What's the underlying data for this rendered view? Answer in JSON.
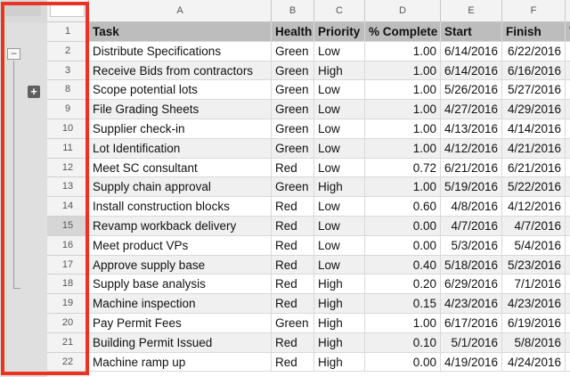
{
  "columns": [
    {
      "letter": "A",
      "header": "Task"
    },
    {
      "letter": "B",
      "header": "Health"
    },
    {
      "letter": "C",
      "header": "Priority"
    },
    {
      "letter": "D",
      "header": "% Complete"
    },
    {
      "letter": "E",
      "header": "Start"
    },
    {
      "letter": "F",
      "header": "Finish"
    },
    {
      "letter": "",
      "header": "V"
    }
  ],
  "group_controls": {
    "collapse_symbol": "−",
    "expand_symbol": "+"
  },
  "rows": [
    {
      "num": "2",
      "task": "Distribute Specifications",
      "health": "Green",
      "priority": "Low",
      "complete": "1.00",
      "start": "6/14/2016",
      "finish": "6/22/2016"
    },
    {
      "num": "3",
      "task": "Receive Bids from contractors",
      "health": "Green",
      "priority": "High",
      "complete": "1.00",
      "start": "6/14/2016",
      "finish": "6/16/2016"
    },
    {
      "num": "8",
      "task": "Scope potential lots",
      "health": "Green",
      "priority": "Low",
      "complete": "1.00",
      "start": "5/26/2016",
      "finish": "5/27/2016"
    },
    {
      "num": "9",
      "task": "File Grading Sheets",
      "health": "Green",
      "priority": "Low",
      "complete": "1.00",
      "start": "4/27/2016",
      "finish": "4/29/2016"
    },
    {
      "num": "10",
      "task": "Supplier check-in",
      "health": "Green",
      "priority": "Low",
      "complete": "1.00",
      "start": "4/13/2016",
      "finish": "4/14/2016"
    },
    {
      "num": "11",
      "task": "Lot Identification",
      "health": "Green",
      "priority": "Low",
      "complete": "1.00",
      "start": "4/12/2016",
      "finish": "4/21/2016"
    },
    {
      "num": "12",
      "task": "Meet SC consultant",
      "health": "Red",
      "priority": "Low",
      "complete": "0.72",
      "start": "6/21/2016",
      "finish": "6/21/2016"
    },
    {
      "num": "13",
      "task": "Supply chain approval",
      "health": "Green",
      "priority": "High",
      "complete": "1.00",
      "start": "5/19/2016",
      "finish": "5/22/2016"
    },
    {
      "num": "14",
      "task": "Install construction blocks",
      "health": "Red",
      "priority": "Low",
      "complete": "0.60",
      "start": "4/8/2016",
      "finish": "4/12/2016"
    },
    {
      "num": "15",
      "task": "Revamp workback delivery",
      "health": "Red",
      "priority": "Low",
      "complete": "0.00",
      "start": "4/7/2016",
      "finish": "4/7/2016"
    },
    {
      "num": "16",
      "task": "Meet product VPs",
      "health": "Red",
      "priority": "Low",
      "complete": "0.00",
      "start": "5/3/2016",
      "finish": "5/4/2016"
    },
    {
      "num": "17",
      "task": "Approve supply base",
      "health": "Red",
      "priority": "Low",
      "complete": "0.40",
      "start": "5/18/2016",
      "finish": "5/23/2016"
    },
    {
      "num": "18",
      "task": "Supply base analysis",
      "health": "Red",
      "priority": "High",
      "complete": "0.20",
      "start": "6/29/2016",
      "finish": "7/1/2016"
    },
    {
      "num": "19",
      "task": "Machine inspection",
      "health": "Red",
      "priority": "High",
      "complete": "0.15",
      "start": "4/23/2016",
      "finish": "4/23/2016"
    },
    {
      "num": "20",
      "task": "Pay Permit Fees",
      "health": "Green",
      "priority": "High",
      "complete": "1.00",
      "start": "6/17/2016",
      "finish": "6/19/2016"
    },
    {
      "num": "21",
      "task": "Building Permit Issued",
      "health": "Red",
      "priority": "High",
      "complete": "0.10",
      "start": "5/1/2016",
      "finish": "5/8/2016"
    },
    {
      "num": "22",
      "task": "Machine ramp up",
      "health": "Red",
      "priority": "High",
      "complete": "0.00",
      "start": "4/19/2016",
      "finish": "4/24/2016"
    }
  ],
  "header_row_num": "1",
  "highlighted_row": "15",
  "colors": {
    "selection": "#ea3323",
    "header_fill": "#bdbdbd",
    "alt_row": "#f0f0f0"
  }
}
